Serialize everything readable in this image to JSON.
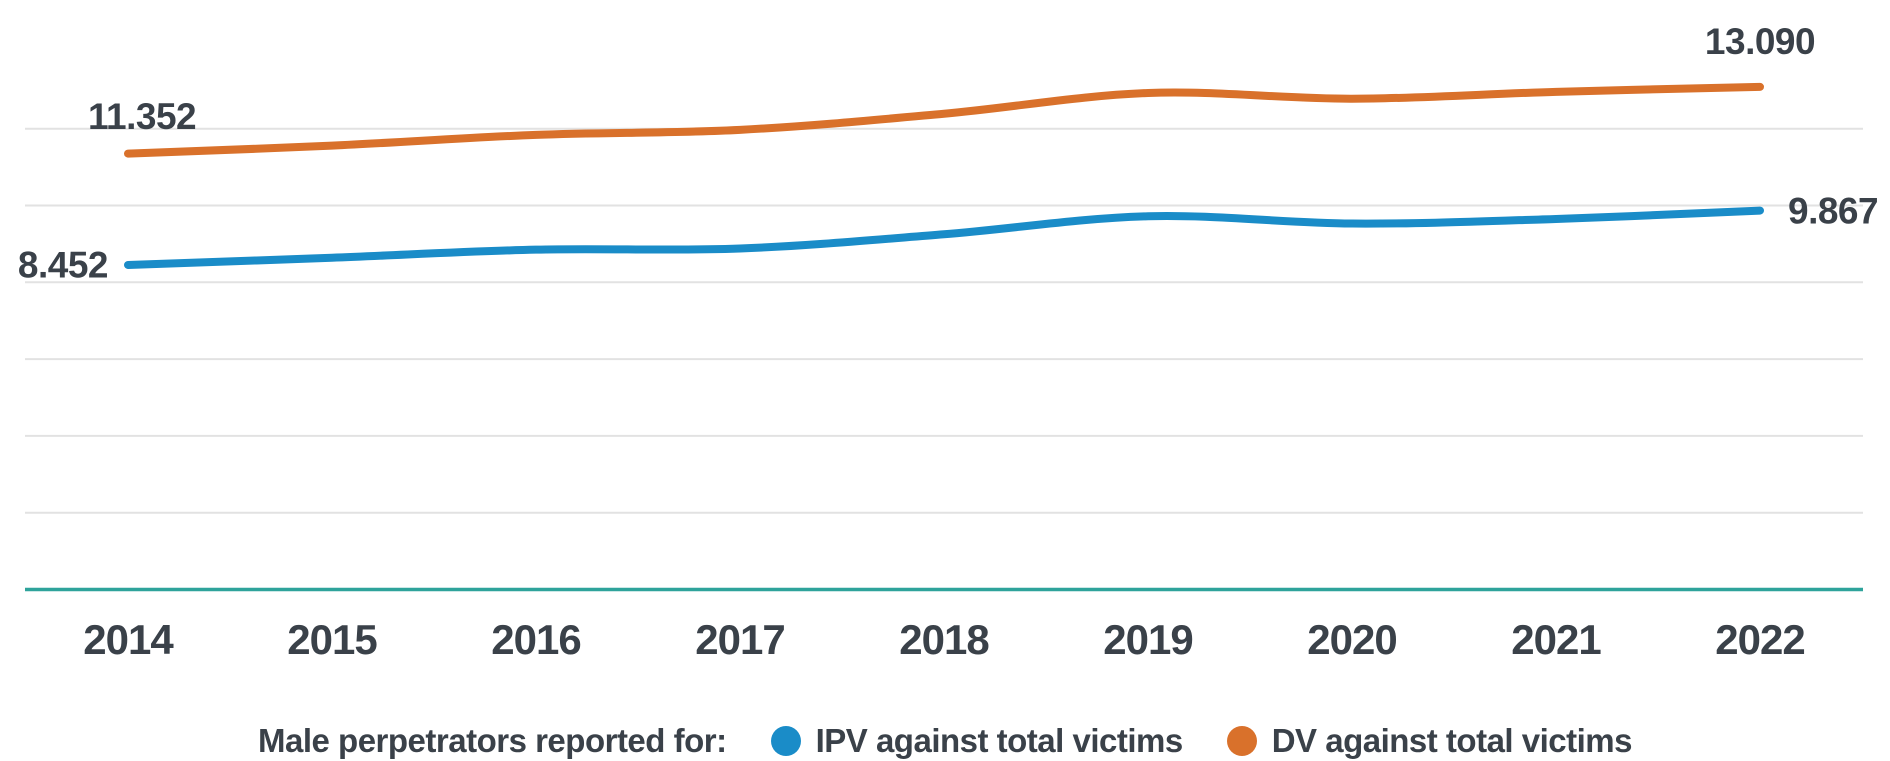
{
  "chart_data": {
    "type": "line",
    "x": [
      "2014",
      "2015",
      "2016",
      "2017",
      "2018",
      "2019",
      "2020",
      "2021",
      "2022"
    ],
    "series": [
      {
        "name": "DV against total victims",
        "color": "#D9712B",
        "values": [
          11352,
          11560,
          11840,
          11970,
          12390,
          12930,
          12780,
          12960,
          13090
        ],
        "first_value_label": "11.352",
        "last_value_label": "13.090"
      },
      {
        "name": "IPV against total victims",
        "color": "#1A8CC8",
        "values": [
          8452,
          8640,
          8850,
          8880,
          9250,
          9720,
          9530,
          9650,
          9867
        ],
        "first_value_label": "8.452",
        "last_value_label": "9.867"
      }
    ],
    "ylim": [
      0,
      14500
    ],
    "y_grid_interval": 2000,
    "grid": "horizontal-only",
    "y_tick_labels_shown": false,
    "x_axis_color": "#2EA39B",
    "grid_color": "#E2E2E2",
    "label_color": "#3A4149",
    "legend_position": "bottom"
  },
  "legend": {
    "title": "Male perpetrators reported for:",
    "items": [
      {
        "label": "IPV against total victims",
        "color": "#1A8CC8"
      },
      {
        "label": "DV against total victims",
        "color": "#D9712B"
      }
    ]
  }
}
